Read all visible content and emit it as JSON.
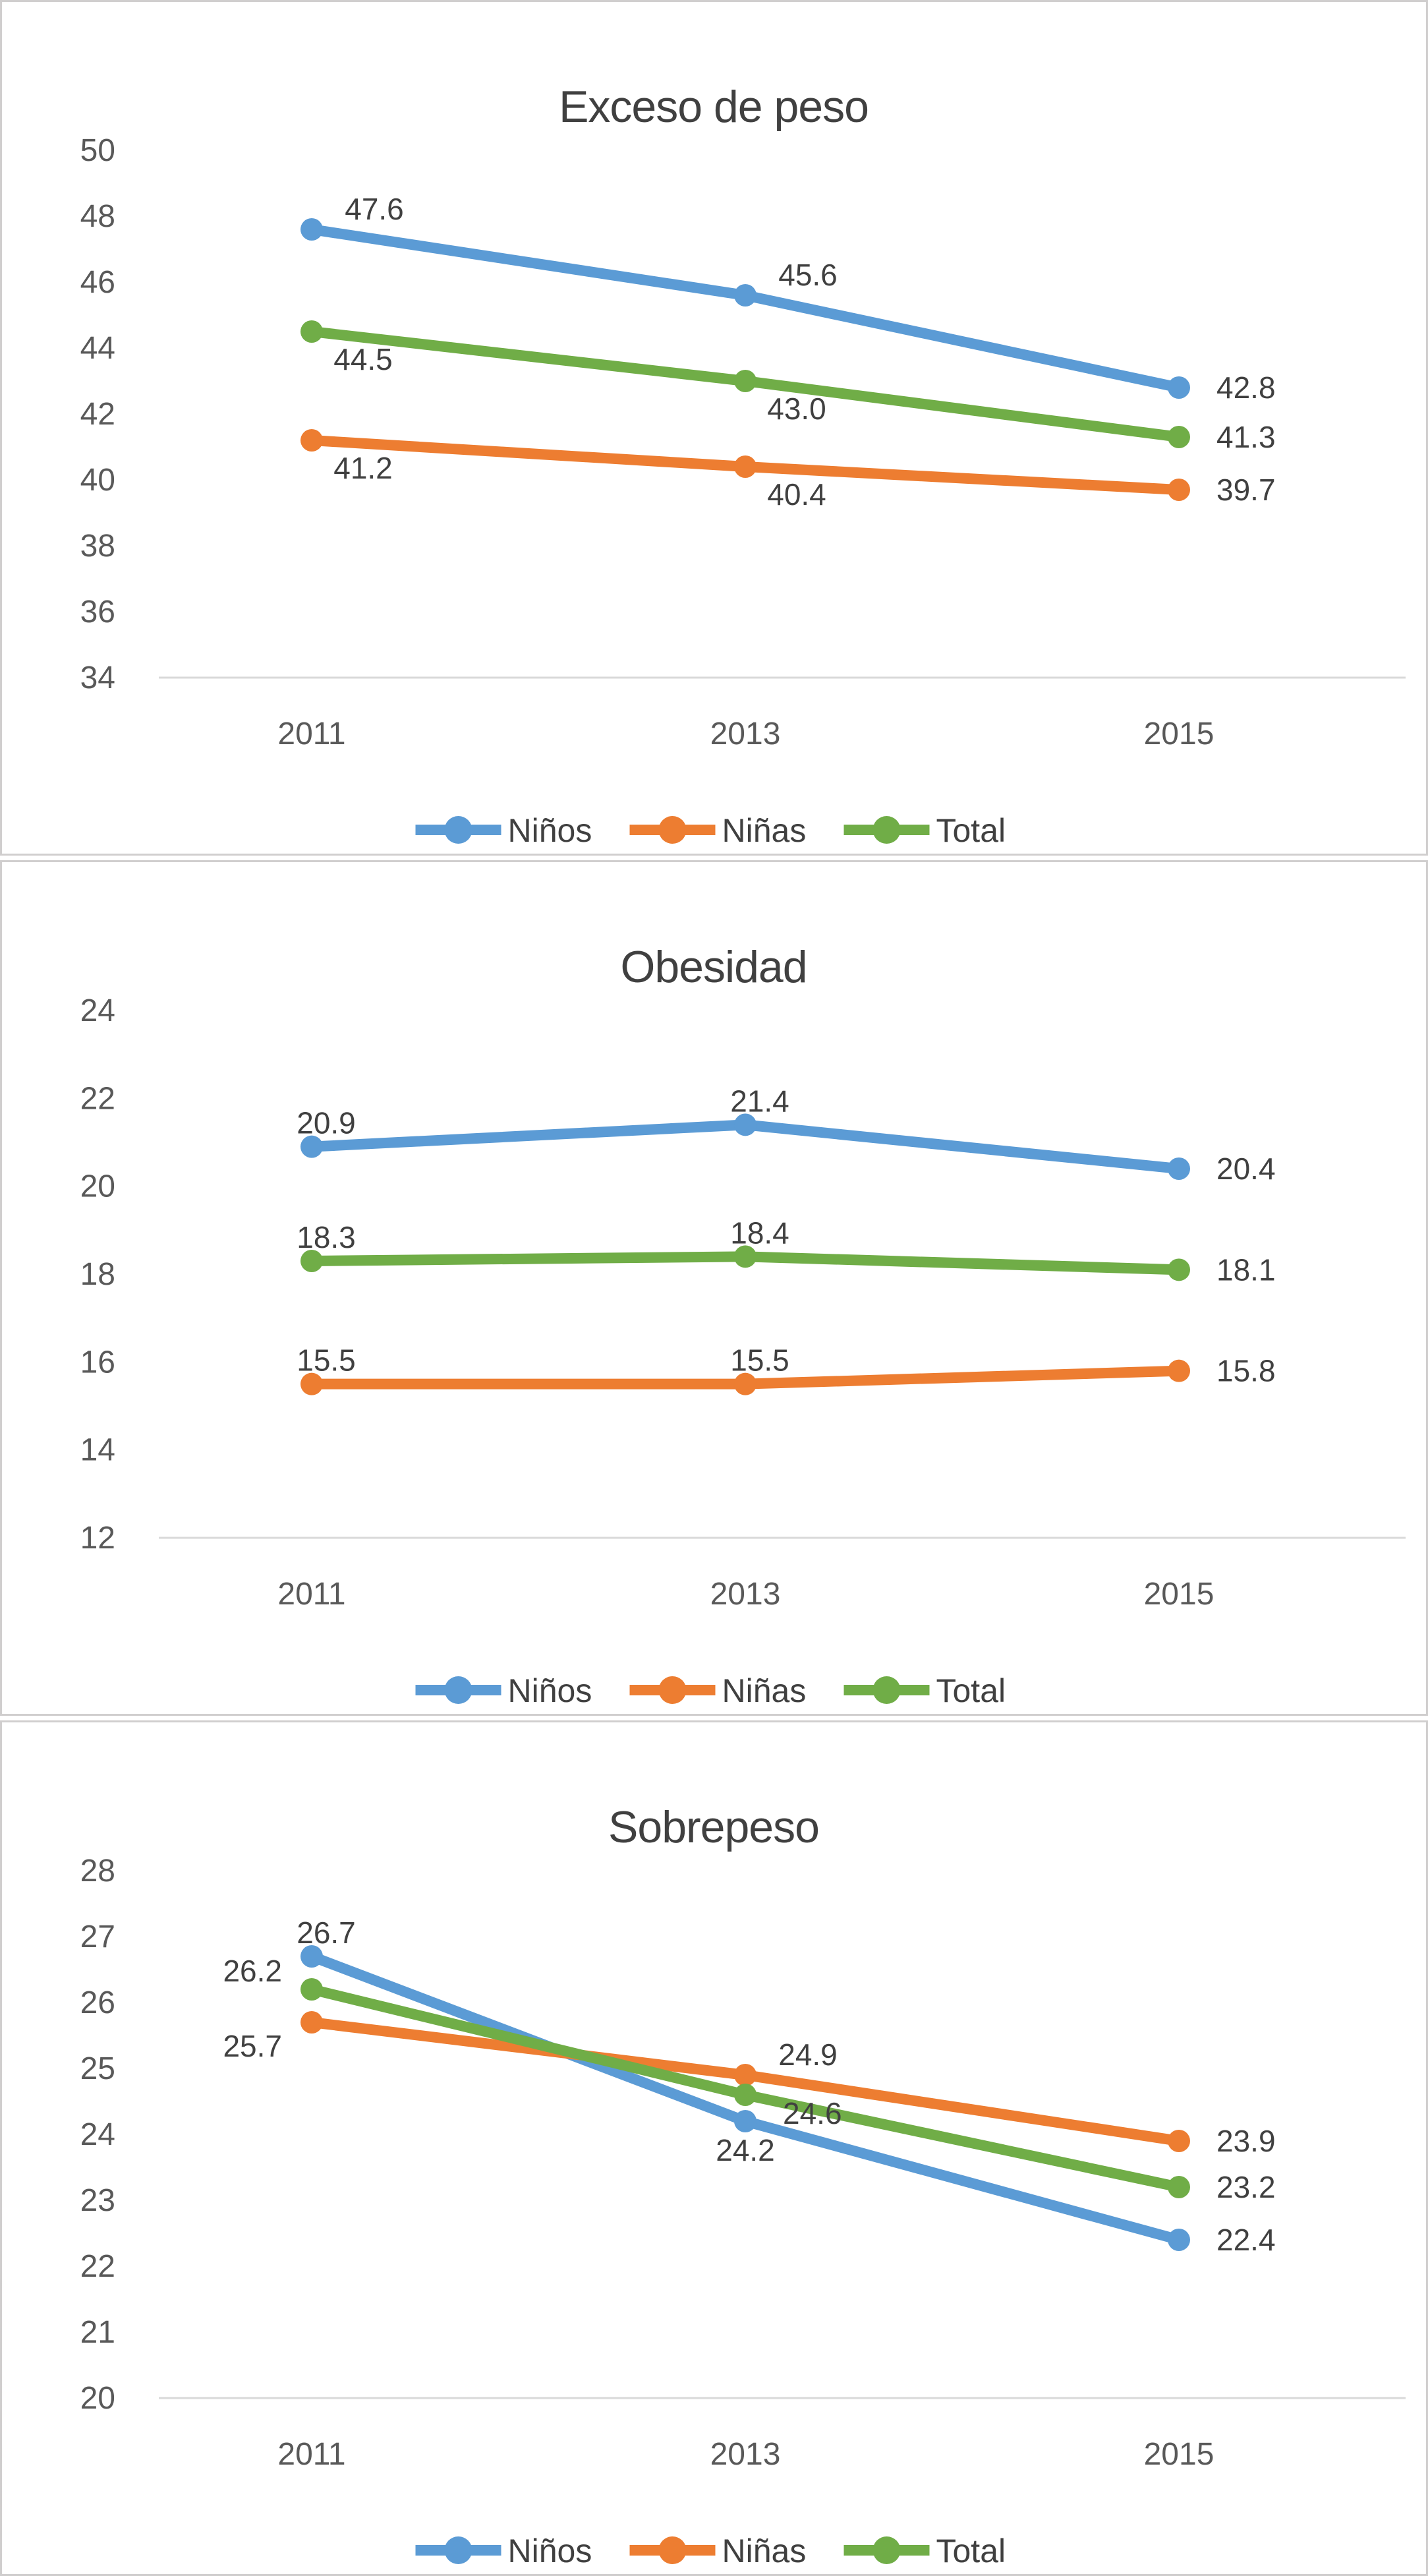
{
  "palette": {
    "ninos": "#5B9BD5",
    "ninas": "#ED7D31",
    "total": "#70AD47",
    "axis_line": "#D9D9D9",
    "tick_text": "#595959",
    "title_text": "#404040",
    "label_text": "#404040",
    "panel_border": "#d0cece",
    "background": "#ffffff"
  },
  "chart_data": [
    {
      "type": "line",
      "title": "Exceso de peso",
      "categories": [
        "2011",
        "2013",
        "2015"
      ],
      "ylim": [
        34,
        50
      ],
      "ytick_step": 2,
      "grid": false,
      "legend_position": "bottom",
      "series": [
        {
          "name": "Niños",
          "color_key": "ninos",
          "values": [
            47.6,
            45.6,
            42.8
          ],
          "labels": [
            "47.6",
            "45.6",
            "42.8"
          ],
          "label_placements": [
            "above-right",
            "above-right",
            "right"
          ]
        },
        {
          "name": "Niñas",
          "color_key": "ninas",
          "values": [
            41.2,
            40.4,
            39.7
          ],
          "labels": [
            "41.2",
            "40.4",
            "39.7"
          ],
          "label_placements": [
            "below",
            "below",
            "right"
          ]
        },
        {
          "name": "Total",
          "color_key": "total",
          "values": [
            44.5,
            43.0,
            41.3
          ],
          "labels": [
            "44.5",
            "43.0",
            "41.3"
          ],
          "label_placements": [
            "below",
            "below",
            "right"
          ]
        }
      ]
    },
    {
      "type": "line",
      "title": "Obesidad",
      "categories": [
        "2011",
        "2013",
        "2015"
      ],
      "ylim": [
        12,
        24
      ],
      "ytick_step": 2,
      "grid": false,
      "legend_position": "bottom",
      "series": [
        {
          "name": "Niños",
          "color_key": "ninos",
          "values": [
            20.9,
            21.4,
            20.4
          ],
          "labels": [
            "20.9",
            "21.4",
            "20.4"
          ],
          "label_placements": [
            "above",
            "above",
            "right"
          ]
        },
        {
          "name": "Niñas",
          "color_key": "ninas",
          "values": [
            15.5,
            15.5,
            15.8
          ],
          "labels": [
            "15.5",
            "15.5",
            "15.8"
          ],
          "label_placements": [
            "above",
            "above",
            "right"
          ]
        },
        {
          "name": "Total",
          "color_key": "total",
          "values": [
            18.3,
            18.4,
            18.1
          ],
          "labels": [
            "18.3",
            "18.4",
            "18.1"
          ],
          "label_placements": [
            "above",
            "above",
            "right"
          ]
        }
      ]
    },
    {
      "type": "line",
      "title": "Sobrepeso",
      "categories": [
        "2011",
        "2013",
        "2015"
      ],
      "ylim": [
        20,
        28
      ],
      "ytick_step": 1,
      "grid": false,
      "legend_position": "bottom",
      "series": [
        {
          "name": "Niños",
          "color_key": "ninos",
          "values": [
            26.7,
            24.2,
            22.4
          ],
          "labels": [
            "26.7",
            "24.2",
            "22.4"
          ],
          "label_placements": [
            "above",
            "below-center",
            "right"
          ]
        },
        {
          "name": "Niñas",
          "color_key": "ninas",
          "values": [
            25.7,
            24.9,
            23.9
          ],
          "labels": [
            "25.7",
            "24.9",
            "23.9"
          ],
          "label_placements": [
            "left-below",
            "above-right",
            "right"
          ]
        },
        {
          "name": "Total",
          "color_key": "total",
          "values": [
            26.2,
            24.6,
            23.2
          ],
          "labels": [
            "26.2",
            "24.6",
            "23.2"
          ],
          "label_placements": [
            "left-above",
            "right-low",
            "right"
          ]
        }
      ]
    }
  ]
}
